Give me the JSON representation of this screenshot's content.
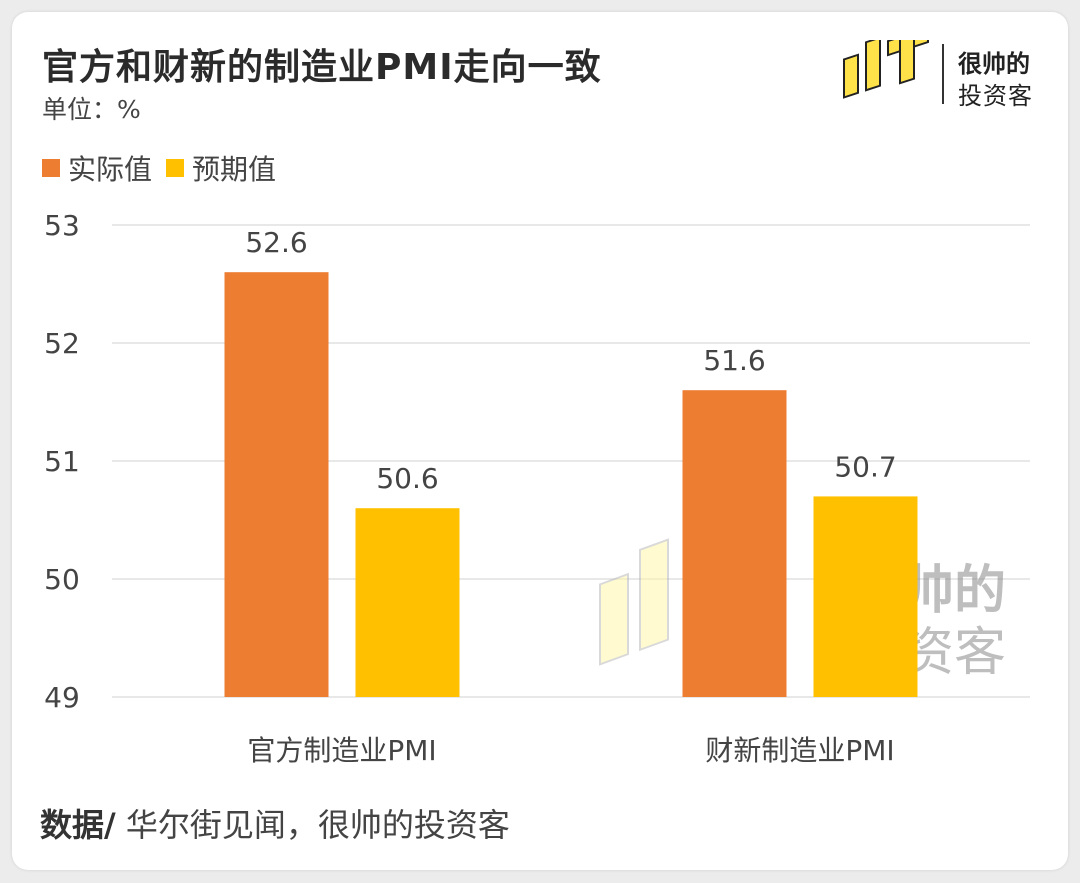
{
  "header": {
    "title": "官方和财新的制造业PMI走向一致",
    "unit": "单位：%"
  },
  "logo": {
    "mark": "帅",
    "line1": "很帅的",
    "line2": "投资客"
  },
  "watermark": {
    "line1": "很帅的",
    "line2": "投资客"
  },
  "colors": {
    "actual": "#ED7D31",
    "expected": "#FFC000",
    "grid": "#d9d9d9",
    "text": "#444444"
  },
  "footer": {
    "lead": "数据/",
    "source": " 华尔街见闻，很帅的投资客"
  },
  "chart_data": {
    "type": "bar",
    "categories": [
      "官方制造业PMI",
      "财新制造业PMI"
    ],
    "series": [
      {
        "name": "实际值",
        "values": [
          52.6,
          51.6
        ]
      },
      {
        "name": "预期值",
        "values": [
          50.6,
          50.7
        ]
      }
    ],
    "ylim": [
      49,
      53
    ],
    "yticks": [
      "49",
      "50",
      "51",
      "52",
      "53"
    ],
    "grid": true,
    "legend_position": "top-left"
  }
}
